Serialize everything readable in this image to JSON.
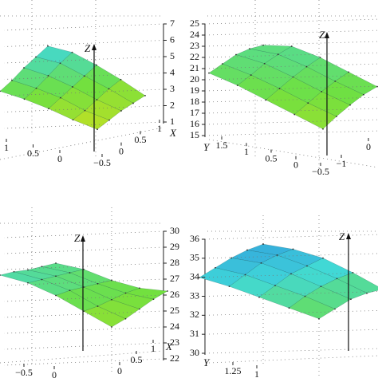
{
  "chart_data": [
    {
      "type": "surface",
      "xlabel": "X",
      "zlabel": "Z",
      "xlim": [
        -0.5,
        1
      ],
      "xticks": [
        {
          "value": -0.5,
          "label": "−0.5"
        },
        0,
        0.5,
        1
      ],
      "ylim": [
        0,
        1
      ],
      "yticks": [
        1,
        0.5,
        0
      ],
      "zlim": [
        1,
        7
      ],
      "zticks": [
        1,
        2,
        3,
        4,
        5,
        6,
        7
      ],
      "colormap": [
        "#f0d020",
        "#c8e020",
        "#70e040",
        "#40d8d8",
        "#2a80e0"
      ],
      "z": [
        [
          4.2,
          3.9,
          3.5,
          3.0,
          2.6
        ],
        [
          4.5,
          4.2,
          3.8,
          3.2,
          2.8
        ],
        [
          4.9,
          4.6,
          4.1,
          3.5,
          3.0
        ],
        [
          5.2,
          5.0,
          4.4,
          3.8,
          3.1
        ],
        [
          5.5,
          5.3,
          4.7,
          4.0,
          3.2
        ]
      ]
    },
    {
      "type": "surface",
      "ylabel": "Y",
      "zlabel": "Z",
      "xlim": [
        -1,
        0
      ],
      "xticks": [
        {
          "value": -1,
          "label": "−1"
        },
        0
      ],
      "ylim": [
        -0.5,
        1.5
      ],
      "yticks": [
        {
          "value": -0.5,
          "label": "−0.5"
        },
        0,
        0.5,
        1,
        1.5
      ],
      "zlim": [
        15,
        25
      ],
      "zticks": [
        15,
        16,
        17,
        18,
        19,
        20,
        21,
        22,
        23,
        24,
        25
      ],
      "colormap": [
        "#f0d020",
        "#c8e020",
        "#70e040",
        "#40d8d8",
        "#2a80e0"
      ],
      "z": [
        [
          20.6,
          20.3,
          19.8,
          19.3,
          18.8
        ],
        [
          20.8,
          20.6,
          20.2,
          19.7,
          19.3
        ],
        [
          21.0,
          21.0,
          20.6,
          20.1,
          19.7
        ],
        [
          20.9,
          21.2,
          20.9,
          20.4,
          20.0
        ],
        [
          20.6,
          21.3,
          21.1,
          20.6,
          20.1
        ]
      ]
    },
    {
      "type": "surface",
      "xlabel": "X",
      "zlabel": "Z",
      "xlim": [
        0,
        1
      ],
      "xticks": [
        0,
        0.5,
        1
      ],
      "ylim": [
        -0.5,
        0
      ],
      "yticks": [
        {
          "value": -0.5,
          "label": "−0.5"
        },
        0
      ],
      "zlim": [
        22,
        30
      ],
      "zticks": [
        22,
        23,
        24,
        25,
        26,
        27,
        28,
        29,
        30
      ],
      "colormap": [
        "#f0d020",
        "#c8e020",
        "#70e040",
        "#40d8d8",
        "#2a80e0"
      ],
      "z": [
        [
          27.5,
          27.2,
          26.6,
          25.8,
          25.0
        ],
        [
          27.4,
          27.1,
          26.6,
          25.8,
          25.2
        ],
        [
          27.2,
          27.0,
          26.5,
          25.9,
          25.5
        ],
        [
          27.1,
          26.9,
          26.4,
          26.0,
          25.8
        ],
        [
          27.0,
          26.8,
          26.3,
          26.0,
          26.0
        ]
      ]
    },
    {
      "type": "surface",
      "ylabel": "Y",
      "zlabel": "Z",
      "ylim": [
        1,
        1.25
      ],
      "yticks": [
        1.25,
        1
      ],
      "zlim": [
        30,
        36
      ],
      "zticks": [
        30,
        31,
        32,
        33,
        34,
        35,
        36
      ],
      "colormap": [
        "#f0d020",
        "#c8e020",
        "#70e040",
        "#40d8d8",
        "#2a80e0"
      ],
      "z": [
        [
          34.7,
          34.4,
          34.0,
          33.6,
          33.2
        ],
        [
          34.9,
          34.7,
          34.3,
          33.9,
          33.4
        ],
        [
          35.1,
          35.0,
          34.6,
          34.1,
          33.6
        ],
        [
          35.2,
          35.1,
          34.7,
          34.2,
          33.6
        ],
        [
          35.2,
          35.1,
          34.8,
          34.2,
          33.5
        ]
      ]
    }
  ]
}
